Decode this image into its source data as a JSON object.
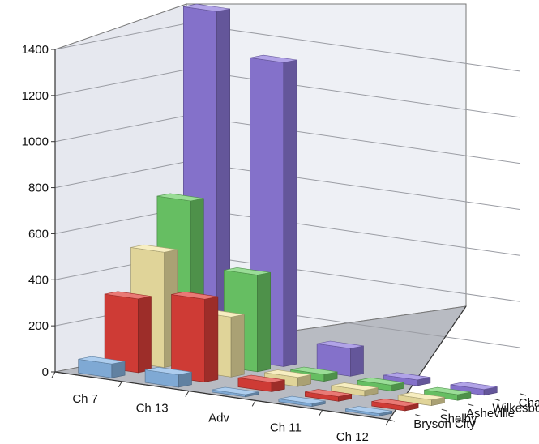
{
  "chart_data": {
    "type": "bar",
    "subtype": "3d-column",
    "title": "",
    "xlabel": "",
    "ylabel": "",
    "ylim": [
      0,
      1400
    ],
    "yticks": [
      0,
      200,
      400,
      600,
      800,
      1000,
      1200,
      1400
    ],
    "grid": true,
    "categories": [
      "Ch 7",
      "Ch 13",
      "Adv",
      "Ch 11",
      "Ch 12"
    ],
    "series": [
      {
        "name": "Bryson City",
        "color": "#8ab8e6",
        "values": [
          60,
          55,
          10,
          12,
          10
        ]
      },
      {
        "name": "Shelby",
        "color": "#e0403a",
        "values": [
          320,
          360,
          40,
          20,
          20
        ]
      },
      {
        "name": "Asheville",
        "color": "#f3e6a6",
        "values": [
          500,
          260,
          40,
          25,
          25
        ]
      },
      {
        "name": "Wilkesboro",
        "color": "#6fcf6a",
        "values": [
          700,
          420,
          30,
          25,
          25
        ]
      },
      {
        "name": "Charlotte",
        "color": "#8f7bdc",
        "values": [
          1500,
          1320,
          120,
          25,
          25
        ]
      }
    ]
  }
}
